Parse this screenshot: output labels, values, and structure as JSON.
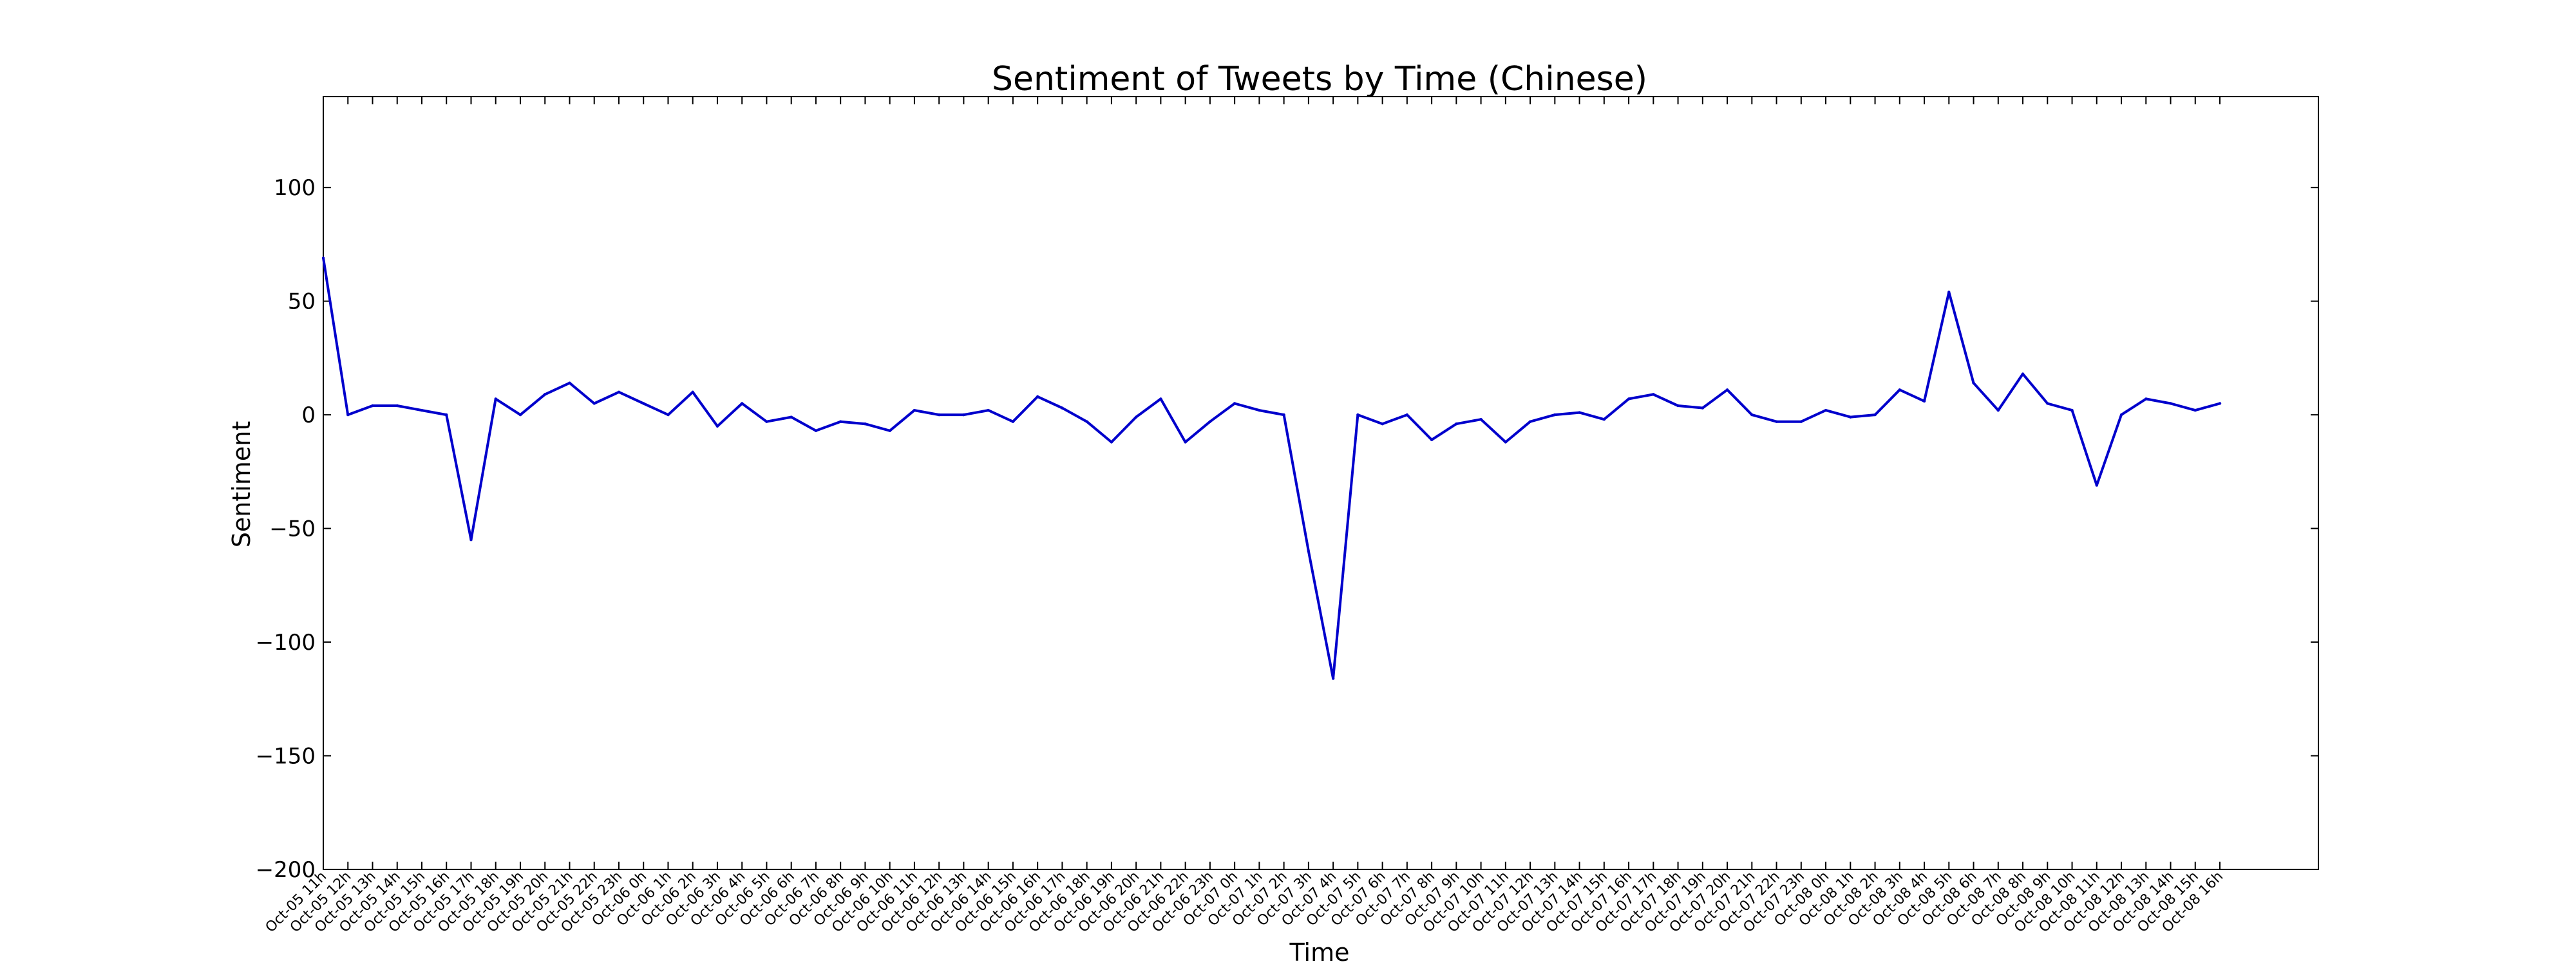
{
  "chart_data": {
    "type": "line",
    "title": "Sentiment of Tweets by Time (Chinese)",
    "xlabel": "Time",
    "ylabel": "Sentiment",
    "ylim": [
      -200,
      140
    ],
    "yticks": [
      -200,
      -150,
      -100,
      -50,
      0,
      50,
      100
    ],
    "grid": false,
    "line_color": "#0000cc",
    "categories": [
      "Oct-05 11h",
      "Oct-05 12h",
      "Oct-05 13h",
      "Oct-05 14h",
      "Oct-05 15h",
      "Oct-05 16h",
      "Oct-05 17h",
      "Oct-05 18h",
      "Oct-05 19h",
      "Oct-05 20h",
      "Oct-05 21h",
      "Oct-05 22h",
      "Oct-05 23h",
      "Oct-06 0h",
      "Oct-06 1h",
      "Oct-06 2h",
      "Oct-06 3h",
      "Oct-06 4h",
      "Oct-06 5h",
      "Oct-06 6h",
      "Oct-06 7h",
      "Oct-06 8h",
      "Oct-06 9h",
      "Oct-06 10h",
      "Oct-06 11h",
      "Oct-06 12h",
      "Oct-06 13h",
      "Oct-06 14h",
      "Oct-06 15h",
      "Oct-06 16h",
      "Oct-06 17h",
      "Oct-06 18h",
      "Oct-06 19h",
      "Oct-06 20h",
      "Oct-06 21h",
      "Oct-06 22h",
      "Oct-06 23h",
      "Oct-07 0h",
      "Oct-07 1h",
      "Oct-07 2h",
      "Oct-07 3h",
      "Oct-07 4h",
      "Oct-07 5h",
      "Oct-07 6h",
      "Oct-07 7h",
      "Oct-07 8h",
      "Oct-07 9h",
      "Oct-07 10h",
      "Oct-07 11h",
      "Oct-07 12h",
      "Oct-07 13h",
      "Oct-07 14h",
      "Oct-07 15h",
      "Oct-07 16h",
      "Oct-07 17h",
      "Oct-07 18h",
      "Oct-07 19h",
      "Oct-07 20h",
      "Oct-07 21h",
      "Oct-07 22h",
      "Oct-07 23h",
      "Oct-08 0h",
      "Oct-08 1h",
      "Oct-08 2h",
      "Oct-08 3h",
      "Oct-08 4h",
      "Oct-08 5h",
      "Oct-08 6h",
      "Oct-08 7h",
      "Oct-08 8h",
      "Oct-08 9h",
      "Oct-08 10h",
      "Oct-08 11h",
      "Oct-08 12h",
      "Oct-08 13h",
      "Oct-08 14h",
      "Oct-08 15h",
      "Oct-08 16h"
    ],
    "series": [
      {
        "values": [
          69,
          0,
          4,
          4,
          2,
          0,
          -55,
          7,
          0,
          9,
          14,
          5,
          10,
          5,
          0,
          10,
          -5,
          5,
          -3,
          -1,
          -7,
          -3,
          -4,
          -7,
          2,
          0,
          0,
          2,
          -3,
          8,
          3,
          -3,
          -12,
          -1,
          7,
          -12,
          -3,
          5,
          2,
          0,
          -60,
          -116,
          0,
          -4,
          0,
          -11,
          -4,
          -2,
          -12,
          -3,
          0,
          1,
          -2,
          7,
          9,
          4,
          3,
          11,
          0,
          -3,
          -3,
          2,
          -1,
          0,
          11,
          6,
          54,
          14,
          2,
          18,
          5,
          2,
          -31,
          0,
          7,
          5,
          2,
          5
        ]
      }
    ]
  }
}
